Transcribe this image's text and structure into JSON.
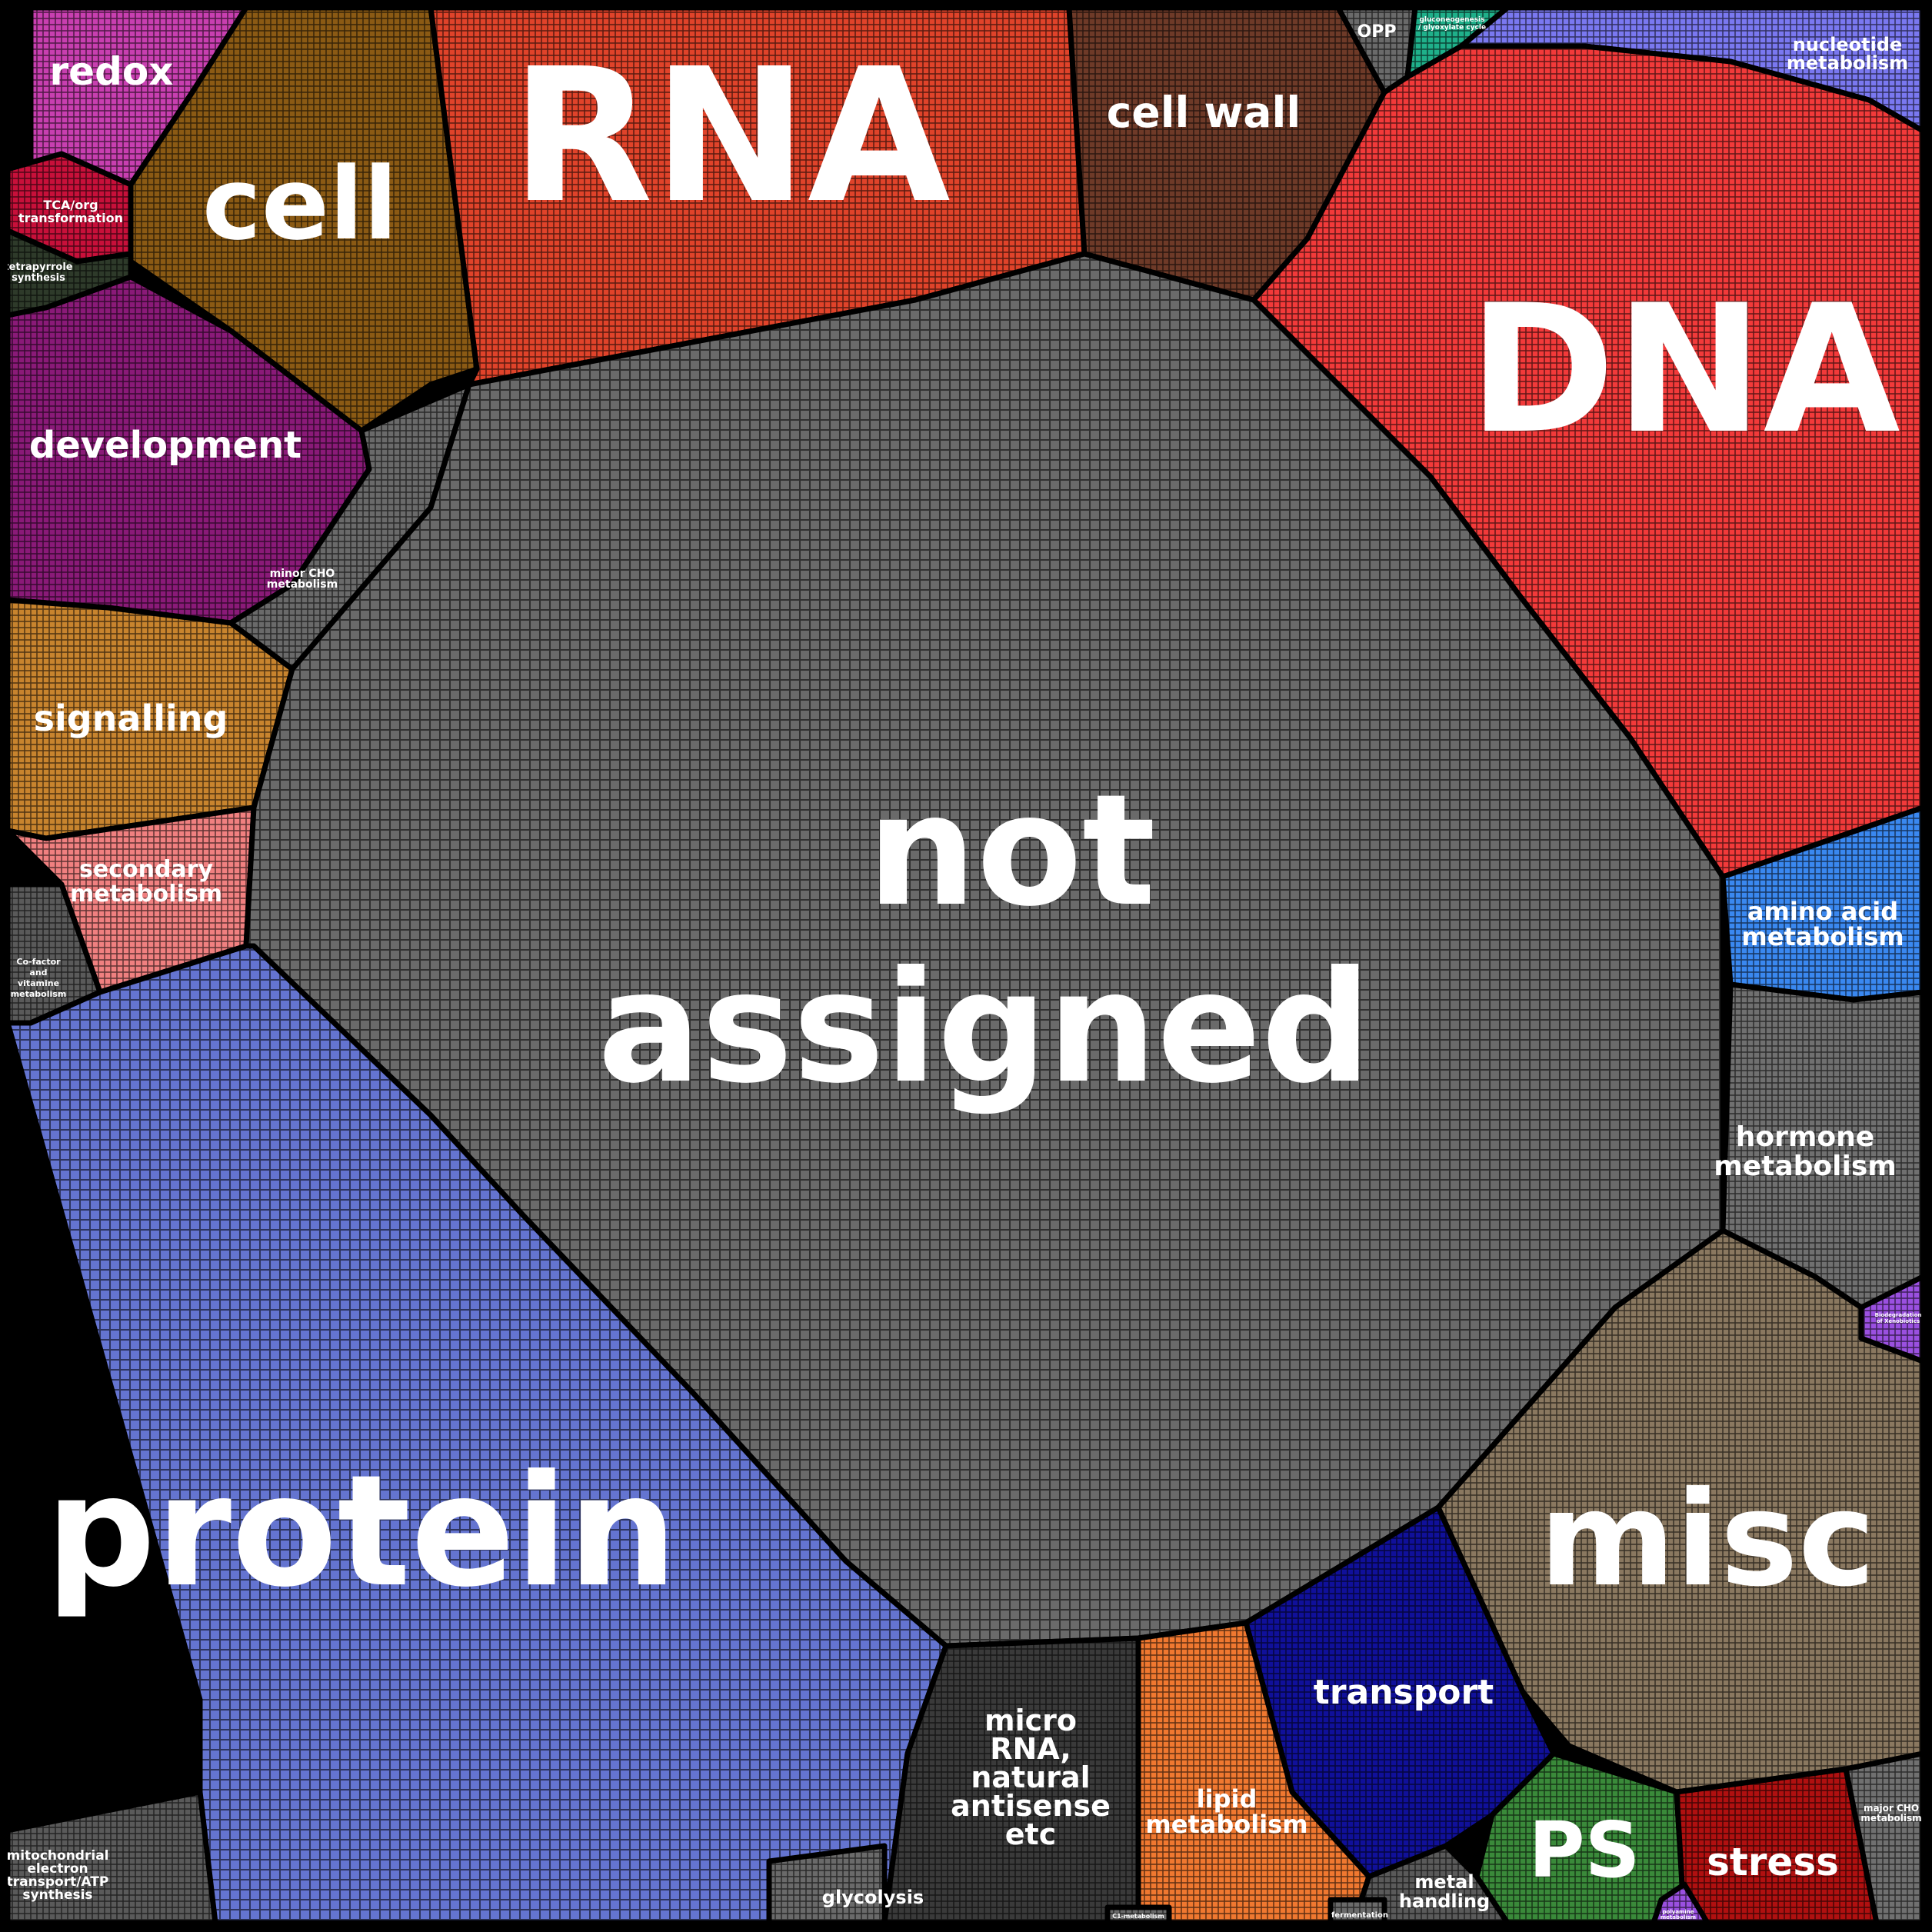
{
  "diagram": {
    "type": "voronoi-treemap",
    "background_color": "#000000",
    "categories": [
      {
        "id": "redox",
        "label": "redox",
        "color": "#c83fb0"
      },
      {
        "id": "tca",
        "label": "TCA/org transformation",
        "color": "#c8103a"
      },
      {
        "id": "tetrapyrrole",
        "label": "tetrapyrrole synthesis",
        "color": "#2e3a2a"
      },
      {
        "id": "cell",
        "label": "cell",
        "color": "#8b5a14"
      },
      {
        "id": "rna",
        "label": "RNA",
        "color": "#e0432a"
      },
      {
        "id": "cell-wall",
        "label": "cell wall",
        "color": "#6e3a28"
      },
      {
        "id": "opp",
        "label": "OPP",
        "color": "#6a6a6a"
      },
      {
        "id": "gluconeogenesis",
        "label": "gluconeogenesis / glyoxylate cycle",
        "color": "#1fb08a"
      },
      {
        "id": "nucleotide",
        "label": "nucleotide metabolism",
        "color": "#7a78f0"
      },
      {
        "id": "dna",
        "label": "DNA",
        "color": "#f23a3a"
      },
      {
        "id": "development",
        "label": "development",
        "color": "#8a1a78"
      },
      {
        "id": "minor-cho",
        "label": "minor CHO metabolism",
        "color": "#6a6a6a"
      },
      {
        "id": "signalling",
        "label": "signalling",
        "color": "#c8842e"
      },
      {
        "id": "secondary",
        "label": "secondary metabolism",
        "color": "#f08080"
      },
      {
        "id": "cofactor",
        "label": "Co-factor and vitamine metabolism",
        "color": "#5a5a5a"
      },
      {
        "id": "not-assigned",
        "label": "not assigned",
        "color": "#6a6a6a"
      },
      {
        "id": "amino-acid",
        "label": "amino acid metabolism",
        "color": "#3a88f0"
      },
      {
        "id": "hormone",
        "label": "hormone metabolism",
        "color": "#707070"
      },
      {
        "id": "biodegradation",
        "label": "Biodegradation of Xenobiotics",
        "color": "#9a50e0"
      },
      {
        "id": "protein",
        "label": "protein",
        "color": "#6474d0"
      },
      {
        "id": "misc",
        "label": "misc",
        "color": "#8a7860"
      },
      {
        "id": "transport",
        "label": "transport",
        "color": "#10109a"
      },
      {
        "id": "micro-rna",
        "label": "micro RNA, natural antisense etc",
        "color": "#3a3a3a"
      },
      {
        "id": "lipid",
        "label": "lipid metabolism",
        "color": "#f07830"
      },
      {
        "id": "ps",
        "label": "PS",
        "color": "#3a8a3a"
      },
      {
        "id": "stress",
        "label": "stress",
        "color": "#b01010"
      },
      {
        "id": "major-cho",
        "label": "major CHO metabolism",
        "color": "#707070"
      },
      {
        "id": "mito",
        "label": "mitochondrial electron transport/ATP synthesis",
        "color": "#5a5a5a"
      },
      {
        "id": "glycolysis",
        "label": "glycolysis",
        "color": "#6a6a6a"
      },
      {
        "id": "metal",
        "label": "metal handling",
        "color": "#5a5a5a"
      },
      {
        "id": "fermentation",
        "label": "fermentation",
        "color": "#6a6a6a"
      },
      {
        "id": "c1",
        "label": "C1-metabolism",
        "color": "#6a6a6a"
      },
      {
        "id": "polyamine",
        "label": "polyamine metabolism",
        "color": "#9a50e0"
      }
    ]
  }
}
